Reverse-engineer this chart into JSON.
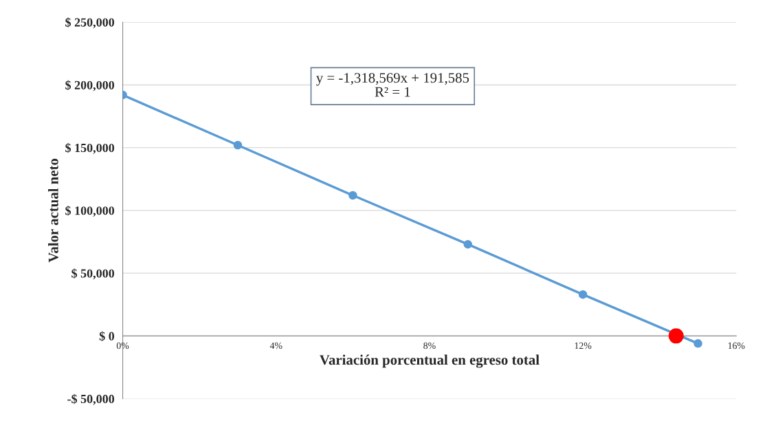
{
  "chart_data": {
    "type": "line",
    "xlabel": "Variación porcentual en egreso total",
    "ylabel": "Valor actual neto",
    "series": [
      {
        "color": "#5b9bd5",
        "x": [
          0,
          0.03,
          0.06,
          0.09,
          0.12,
          0.145,
          0.15
        ],
        "values": [
          192000,
          152000,
          112000,
          73000,
          33000,
          null,
          -6000
        ],
        "marker": "circle"
      },
      {
        "type": "scatter",
        "color": "#ff0000",
        "x": [
          0.1443
        ],
        "values": [
          0
        ],
        "marker": "circle"
      }
    ],
    "annotations": [
      "y = -1,318,569x + 191,585\nR² = 1"
    ],
    "xlim": [
      0,
      0.16
    ],
    "xticks": [
      {
        "value": 0,
        "label": "0%"
      },
      {
        "value": 0.04,
        "label": "4%"
      },
      {
        "value": 0.08,
        "label": "8%"
      },
      {
        "value": 0.12,
        "label": "12%"
      },
      {
        "value": 0.16,
        "label": "16%"
      }
    ],
    "ylim": [
      -50000,
      250000
    ],
    "yticks": [
      {
        "value": -50000,
        "label": "-$ 50,000"
      },
      {
        "value": 0,
        "label": "$ 0"
      },
      {
        "value": 50000,
        "label": "$ 50,000"
      },
      {
        "value": 100000,
        "label": "$ 100,000"
      },
      {
        "value": 150000,
        "label": "$ 150,000"
      },
      {
        "value": 200000,
        "label": "$ 200,000"
      },
      {
        "value": 250000,
        "label": "$ 250,000"
      }
    ],
    "grid": "y",
    "legend": false
  }
}
